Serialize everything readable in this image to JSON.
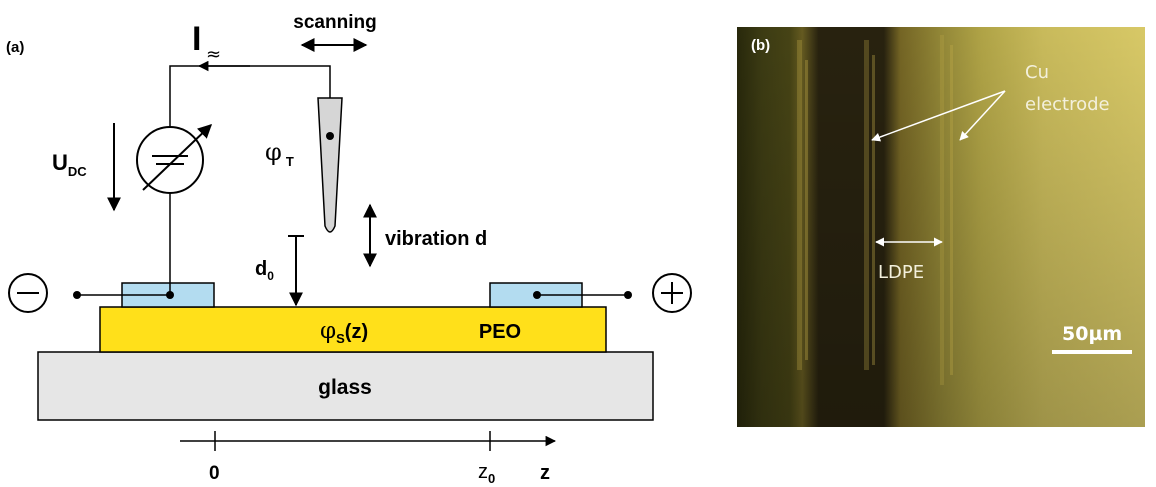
{
  "panel_a": {
    "label": "(a)",
    "current_symbol": "I",
    "current_sub": "≈",
    "scanning": "scanning",
    "voltage": "U",
    "voltage_sub": "DC",
    "tip_potential": "φ",
    "tip_potential_sub": "T",
    "vibration": "vibration d",
    "gap": "d",
    "gap_sub": "0",
    "surface_potential": "φ",
    "surface_potential_sub": "S",
    "surface_potential_arg": "(z)",
    "film": "PEO",
    "substrate": "glass",
    "axis_origin": "0",
    "axis_z0": "z",
    "axis_z0_sub": "0",
    "axis_label": "z",
    "colors": {
      "film": "#ffe01a",
      "electrode": "#b3dcf0",
      "substrate": "#e6e6e6"
    }
  },
  "panel_b": {
    "label": "(b)",
    "electrode_label_1": "Cu",
    "electrode_label_2": "electrode",
    "gap_label": "LDPE",
    "scale_bar": "50µm"
  }
}
